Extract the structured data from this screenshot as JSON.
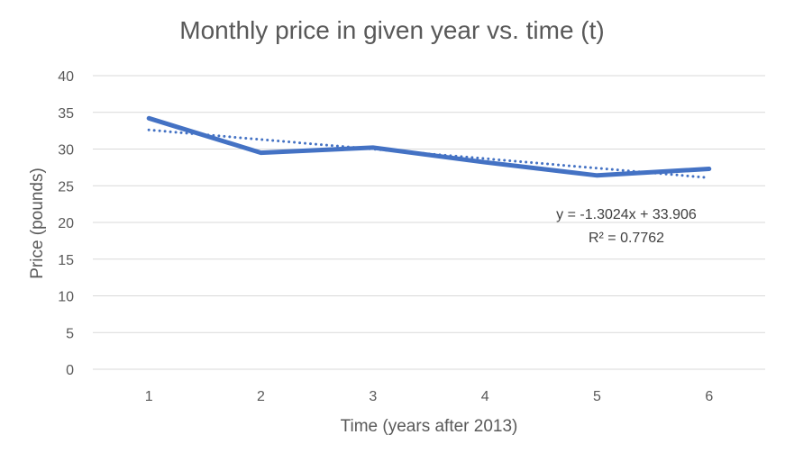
{
  "chart_data": {
    "type": "line",
    "title": "Monthly price in given year vs. time (t)",
    "xlabel": "Time (years after 2013)",
    "ylabel": "Price (pounds)",
    "x": [
      1,
      2,
      3,
      4,
      5,
      6
    ],
    "x_tick_labels": [
      "1",
      "2",
      "3",
      "4",
      "5",
      "6"
    ],
    "y_tick_labels": [
      "0",
      "5",
      "10",
      "15",
      "20",
      "25",
      "30",
      "35",
      "40"
    ],
    "ylim": [
      0,
      40
    ],
    "grid": true,
    "legend": "none",
    "series": [
      {
        "values": [
          34.2,
          29.5,
          30.2,
          28.2,
          26.4,
          27.3
        ],
        "color": "#4472c4",
        "style": "solid"
      }
    ],
    "trendline": {
      "type": "linear",
      "slope": -1.3024,
      "intercept": 33.906,
      "color": "#4472c4",
      "style": "dotted",
      "equation_label": "y = -1.3024x + 33.906",
      "r2_label": "R² = 0.7762"
    }
  }
}
